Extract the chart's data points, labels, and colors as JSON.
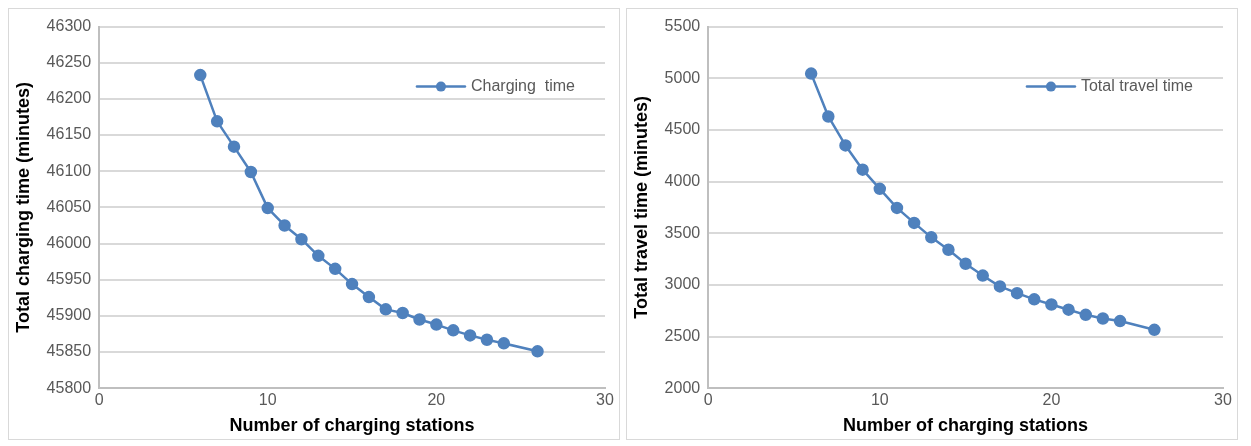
{
  "chart_data": [
    {
      "type": "line",
      "xlabel": "Number of charging stations",
      "ylabel": "Total charging time (minutes)",
      "x": [
        6,
        7,
        8,
        9,
        10,
        11,
        12,
        13,
        14,
        15,
        16,
        17,
        18,
        19,
        20,
        21,
        22,
        23,
        24,
        26
      ],
      "series": [
        {
          "name": "Charging  time",
          "color": "#4f81bd",
          "values": [
            46233,
            46169,
            46134,
            46099,
            46049,
            46025,
            46006,
            45983,
            45965,
            45944,
            45926,
            45909,
            45904,
            45895,
            45888,
            45880,
            45873,
            45867,
            45862,
            45851
          ]
        }
      ],
      "xlim": [
        0,
        30
      ],
      "xticks": [
        0,
        10,
        20,
        30
      ],
      "ylim": [
        45800,
        46300
      ],
      "yticks": [
        45800,
        45850,
        45900,
        45950,
        46000,
        46050,
        46100,
        46150,
        46200,
        46250,
        46300
      ],
      "grid": "y",
      "legend": "top right",
      "marker": "circle"
    },
    {
      "type": "line",
      "xlabel": "Number of charging stations",
      "ylabel": "Total travel time (minutes)",
      "x": [
        6,
        7,
        8,
        9,
        10,
        11,
        12,
        13,
        14,
        15,
        16,
        17,
        18,
        19,
        20,
        21,
        22,
        23,
        24,
        26
      ],
      "series": [
        {
          "name": "Total travel time",
          "color": "#4f81bd",
          "values": [
            5045,
            4630,
            4350,
            4115,
            3930,
            3745,
            3600,
            3460,
            3340,
            3205,
            3090,
            2985,
            2920,
            2860,
            2810,
            2760,
            2710,
            2675,
            2650,
            2565
          ]
        }
      ],
      "xlim": [
        0,
        30
      ],
      "xticks": [
        0,
        10,
        20,
        30
      ],
      "ylim": [
        2000,
        5500
      ],
      "yticks": [
        2000,
        2500,
        3000,
        3500,
        4000,
        4500,
        5000,
        5500
      ],
      "grid": "y",
      "legend": "top right",
      "marker": "circle"
    }
  ]
}
